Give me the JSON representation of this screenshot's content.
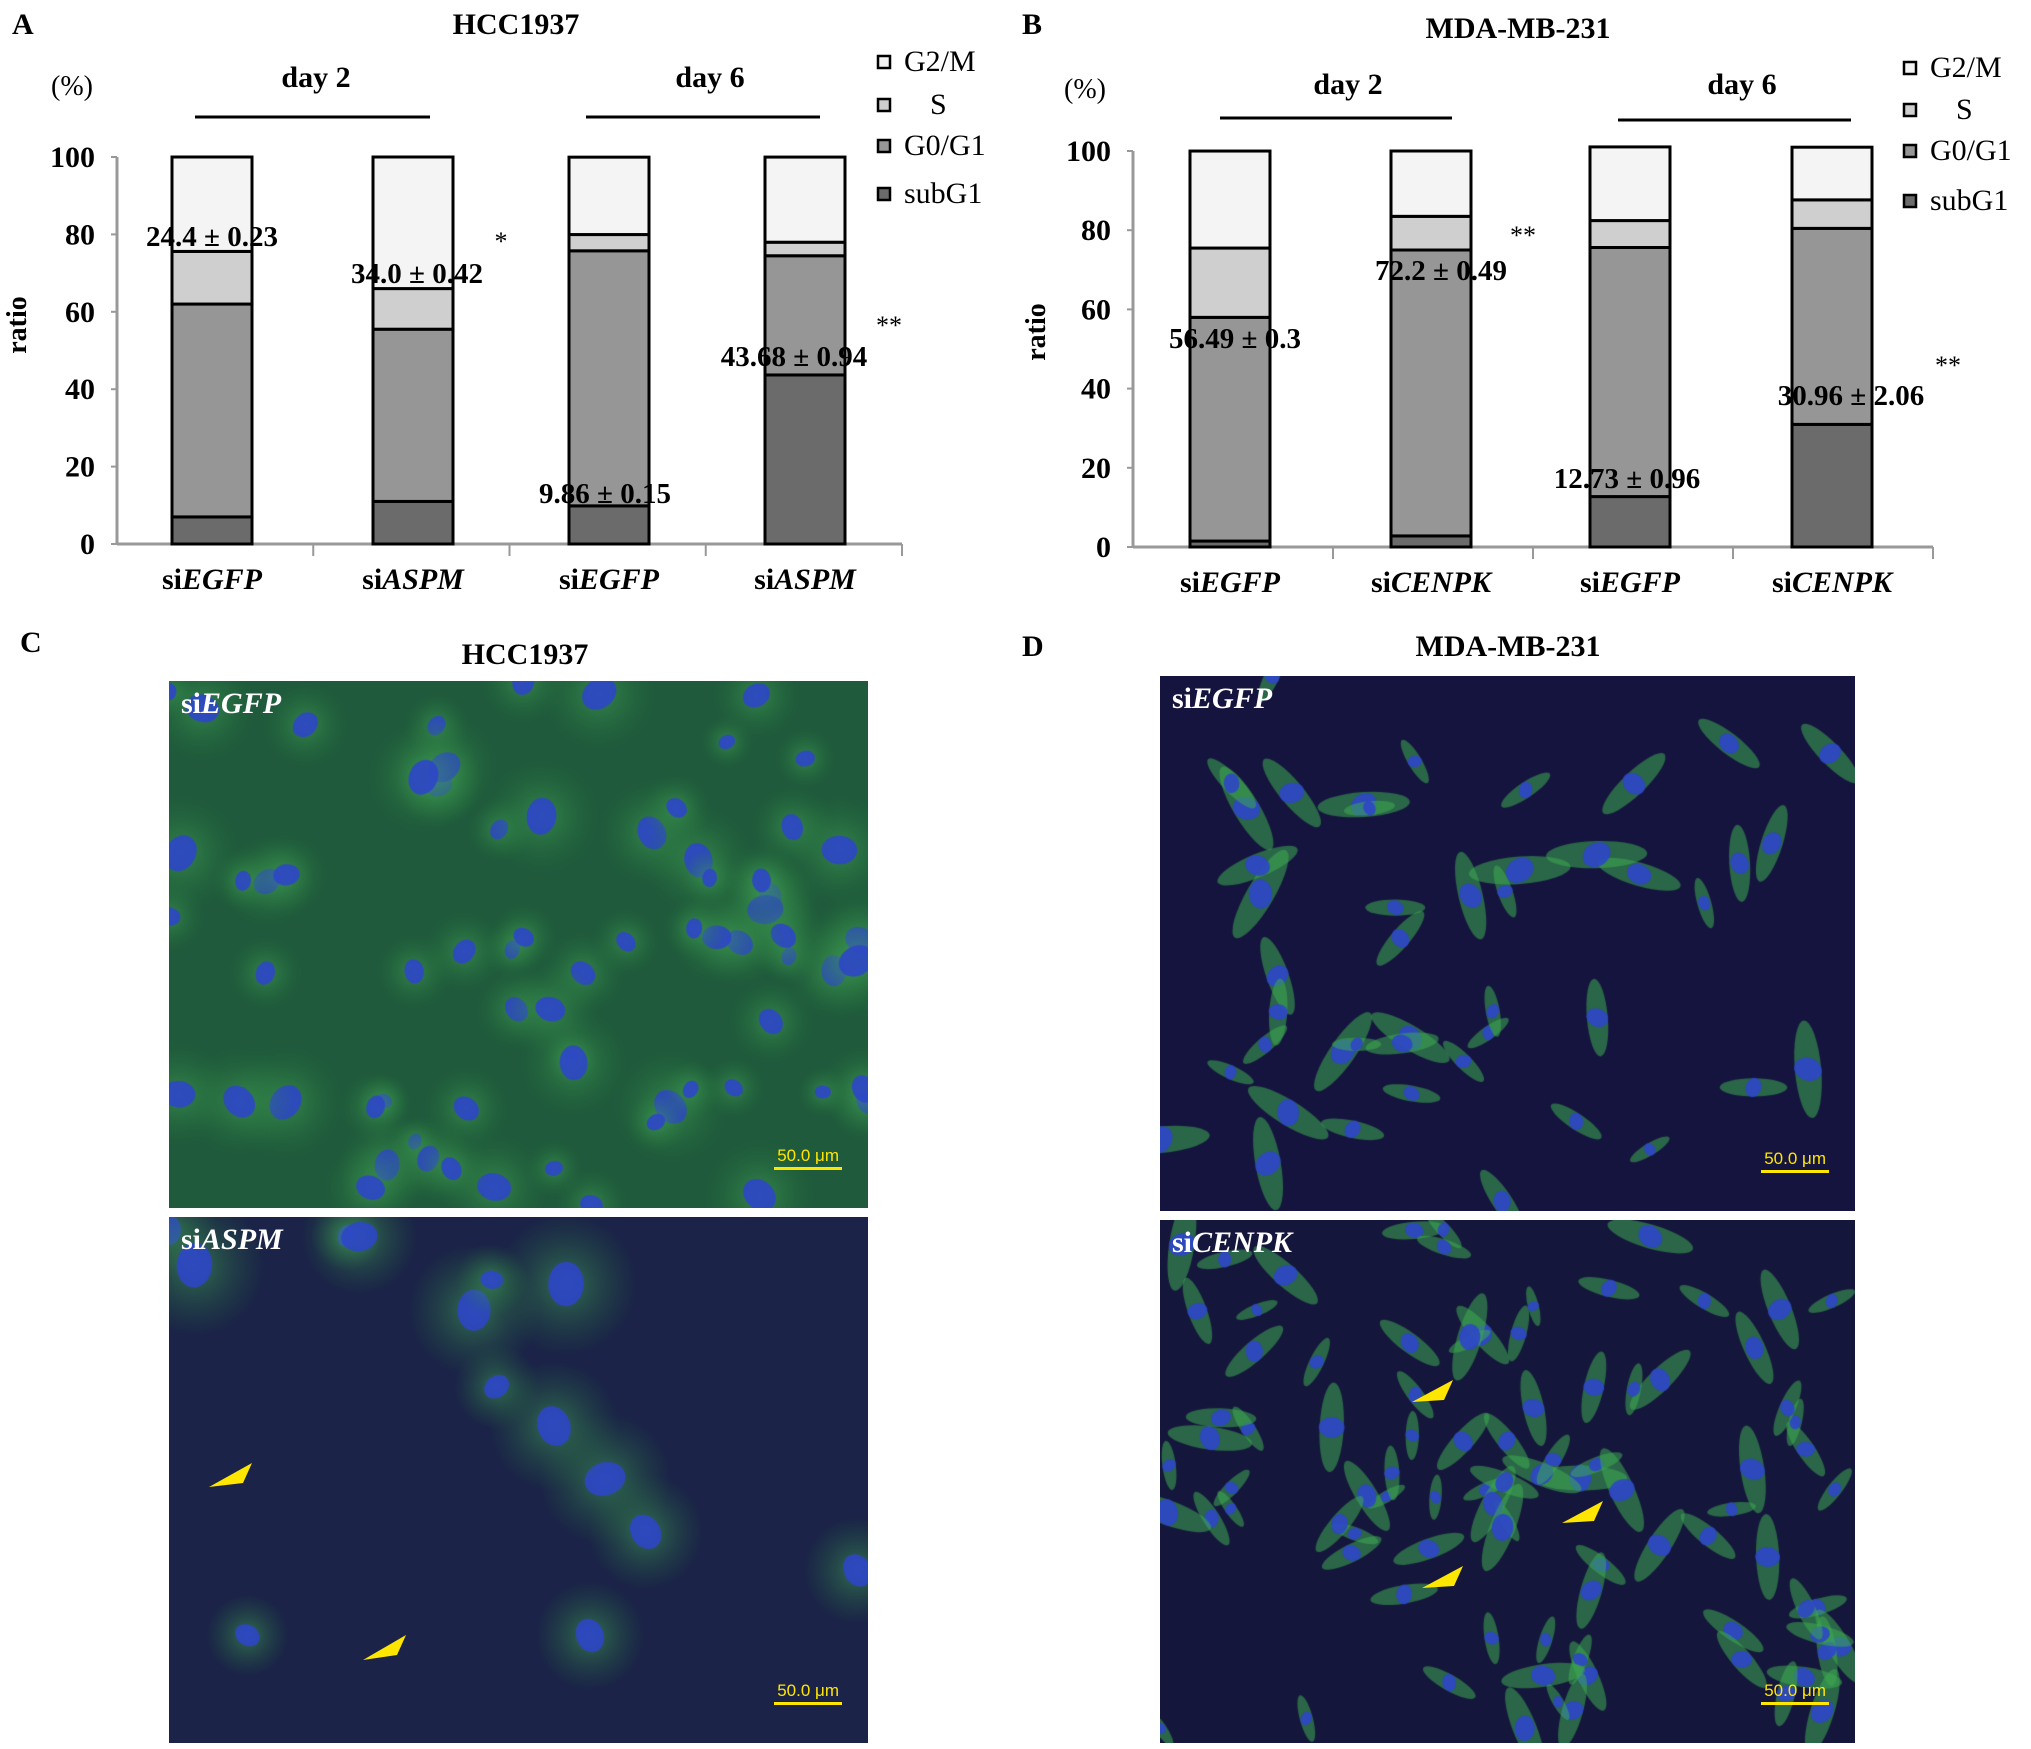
{
  "panels": {
    "A": {
      "letter": "A",
      "title": "HCC1937"
    },
    "B": {
      "letter": "B",
      "title": "MDA-MB-231"
    },
    "C": {
      "letter": "C",
      "title": "HCC1937"
    },
    "D": {
      "letter": "D",
      "title": "MDA-MB-231"
    }
  },
  "colors": {
    "G2/M": "#f4f4f4",
    "S": "#cfcfcf",
    "G0/G1": "#969696",
    "subG1": "#6b6b6b",
    "arrowhead": "#ffe600",
    "scale_bar": "#ffe600"
  },
  "chart_data": [
    {
      "type": "bar",
      "stacked": true,
      "title": "HCC1937",
      "ylabel": "ratio",
      "yunit": "(%)",
      "ylim": [
        0,
        100
      ],
      "yticks": [
        "0",
        "20",
        "40",
        "60",
        "80",
        "100"
      ],
      "groups": [
        {
          "label": "day 2"
        },
        {
          "label": "day 6"
        }
      ],
      "categories": [
        {
          "prefix": "si",
          "gene": "EGFP"
        },
        {
          "prefix": "si",
          "gene": "ASPM"
        },
        {
          "prefix": "si",
          "gene": "EGFP"
        },
        {
          "prefix": "si",
          "gene": "ASPM"
        }
      ],
      "legend": [
        "G2/M",
        "S",
        "G0/G1",
        "subG1"
      ],
      "legend_position": "top-right",
      "series": [
        {
          "name": "subG1",
          "values": [
            7,
            11,
            9.86,
            43.68
          ]
        },
        {
          "name": "G0/G1",
          "values": [
            55,
            44.5,
            65.9,
            30.8
          ]
        },
        {
          "name": "S",
          "values": [
            13.6,
            10.5,
            4.2,
            3.5
          ]
        },
        {
          "name": "G2/M",
          "values": [
            24.4,
            34.0,
            20.0,
            22.0
          ]
        }
      ],
      "annotations": [
        "24.4 ± 0.23",
        "34.0 ± 0.42",
        "9.86 ± 0.15",
        "43.68 ± 0.94"
      ],
      "significance": [
        "",
        "*",
        "",
        "**"
      ]
    },
    {
      "type": "bar",
      "stacked": true,
      "title": "MDA-MB-231",
      "ylabel": "ratio",
      "yunit": "(%)",
      "ylim": [
        0,
        100
      ],
      "yticks": [
        "0",
        "20",
        "40",
        "60",
        "80",
        "100"
      ],
      "groups": [
        {
          "label": "day 2"
        },
        {
          "label": "day 6"
        }
      ],
      "categories": [
        {
          "prefix": "si",
          "gene": "EGFP"
        },
        {
          "prefix": "si",
          "gene": "CENPK"
        },
        {
          "prefix": "si",
          "gene": "EGFP"
        },
        {
          "prefix": "si",
          "gene": "CENPK"
        }
      ],
      "legend": [
        "G2/M",
        "S",
        "G0/G1",
        "subG1"
      ],
      "legend_position": "top-right",
      "series": [
        {
          "name": "subG1",
          "values": [
            1.5,
            2.8,
            12.73,
            30.96
          ]
        },
        {
          "name": "G0/G1",
          "values": [
            56.49,
            72.2,
            62.9,
            49.5
          ]
        },
        {
          "name": "S",
          "values": [
            17.5,
            8.5,
            6.8,
            7.2
          ]
        },
        {
          "name": "G2/M",
          "values": [
            24.5,
            16.5,
            18.6,
            13.3
          ]
        }
      ],
      "annotations": [
        "56.49 ± 0.3",
        "72.2 ± 0.49",
        "12.73 ± 0.96",
        "30.96 ± 2.06"
      ],
      "significance": [
        "",
        "**",
        "",
        "**"
      ]
    }
  ],
  "micrographs": {
    "C_top": {
      "prefix": "si",
      "gene": "EGFP",
      "scale": "50.0 μm"
    },
    "C_bottom": {
      "prefix": "si",
      "gene": "ASPM",
      "scale": "50.0 μm"
    },
    "D_top": {
      "prefix": "si",
      "gene": "EGFP",
      "scale": "50.0 μm"
    },
    "D_bottom": {
      "prefix": "si",
      "gene": "CENPK",
      "scale": "50.0 μm"
    }
  }
}
